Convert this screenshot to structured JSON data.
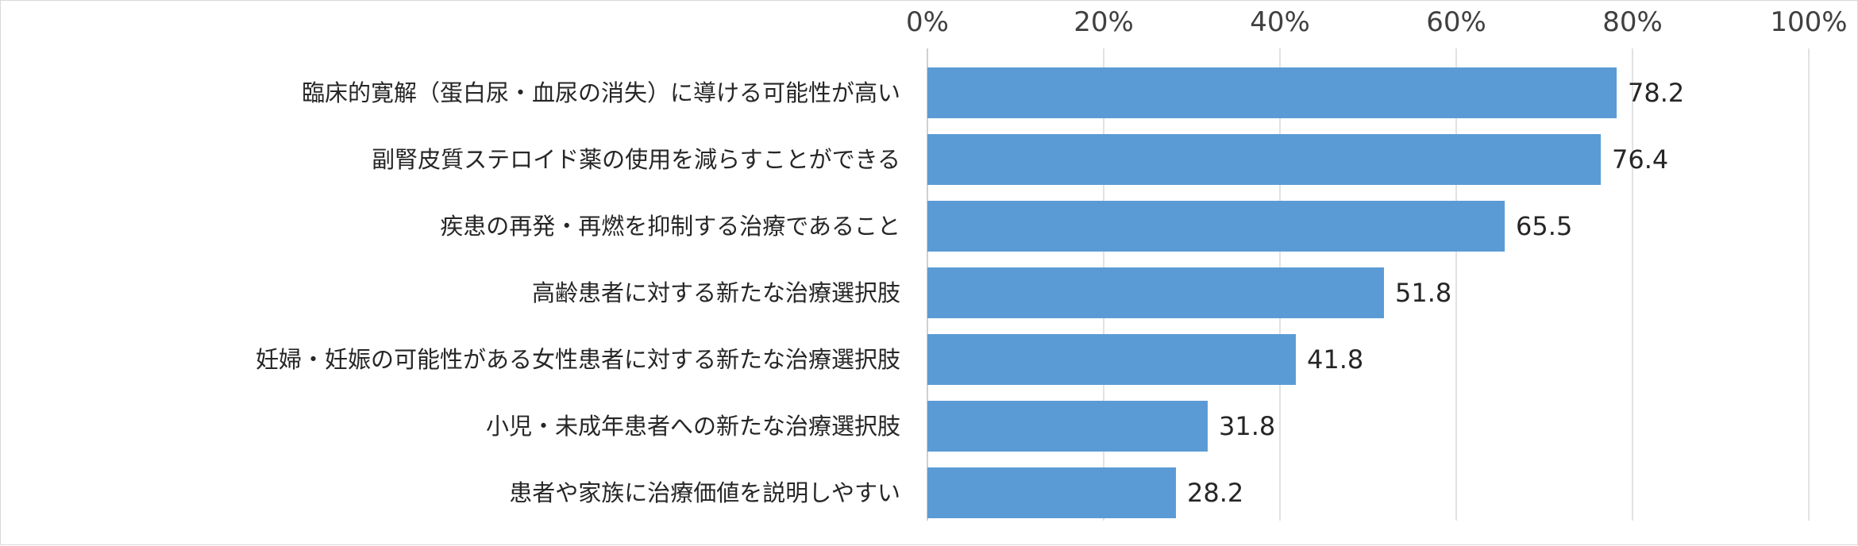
{
  "chart_data": {
    "type": "bar",
    "orientation": "horizontal",
    "categories": [
      "臨床的寛解（蛋白尿・血尿の消失）に導ける可能性が高い",
      "副腎皮質ステロイド薬の使用を減らすことができる",
      "疾患の再発・再燃を抑制する治療であること",
      "高齢患者に対する新たな治療選択肢",
      "妊婦・妊娠の可能性がある女性患者に対する新たな治療選択肢",
      "小児・未成年患者への新たな治療選択肢",
      "患者や家族に治療価値を説明しやすい"
    ],
    "values": [
      78.2,
      76.4,
      65.5,
      51.8,
      41.8,
      31.8,
      28.2
    ],
    "data_labels": [
      "78.2",
      "76.4",
      "65.5",
      "51.8",
      "41.8",
      "31.8",
      "28.2"
    ],
    "xlim": [
      0,
      100
    ],
    "xticks": [
      0,
      20,
      40,
      60,
      80,
      100
    ],
    "xtick_labels": [
      "0%",
      "20%",
      "40%",
      "60%",
      "80%",
      "100%"
    ],
    "axis_position": "top",
    "grid": true,
    "legend": "none",
    "title": "",
    "xlabel": "",
    "ylabel": "",
    "colors": {
      "bar": "#5b9bd5",
      "grid": "#d9d9d9",
      "text": "#262626"
    }
  }
}
